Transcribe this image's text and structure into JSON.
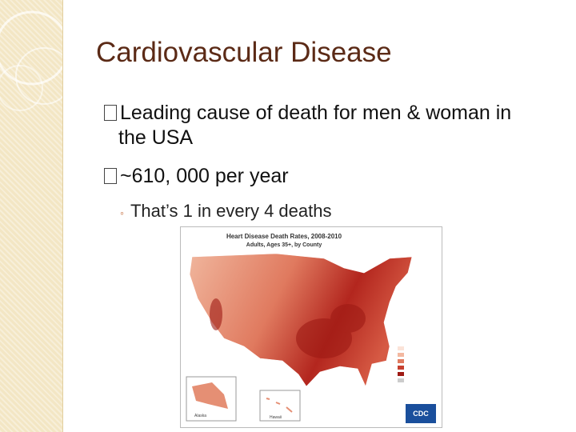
{
  "slide": {
    "title": "Cardiovascular Disease",
    "bullets": [
      {
        "text": "Leading cause of death for men & woman in the USA"
      },
      {
        "text": "~610, 000 per year",
        "sub_bullets": [
          "That’s 1 in every 4 deaths"
        ]
      }
    ],
    "map": {
      "title": "Heart Disease Death Rates, 2008-2010",
      "subtitle": "Adults, Ages 35+, by County",
      "inset_labels": [
        "Alaska",
        "Hawaii"
      ],
      "logo": "CDC"
    }
  }
}
